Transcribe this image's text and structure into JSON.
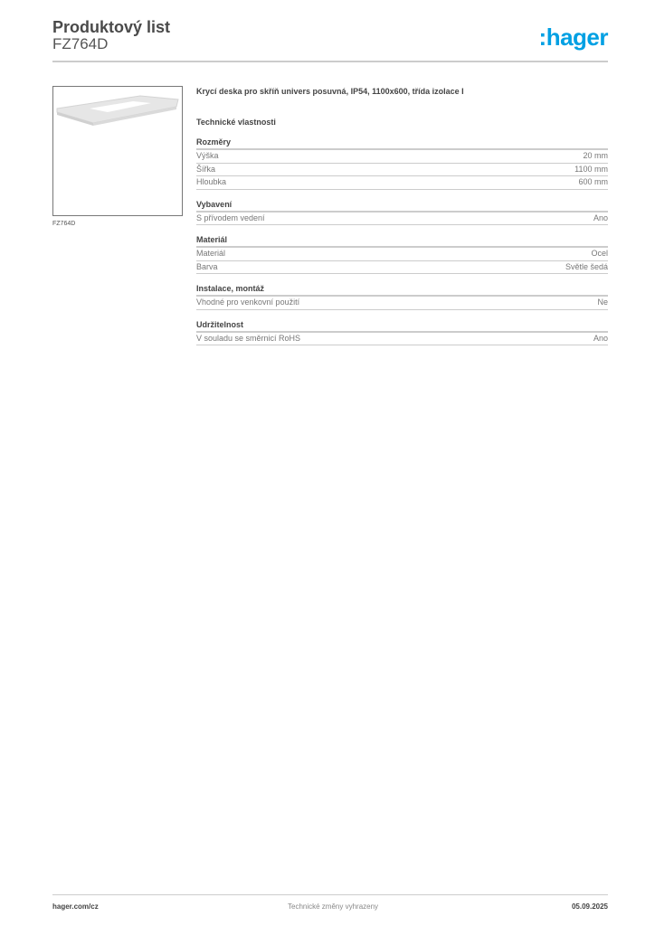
{
  "header": {
    "title": "Produktový list",
    "code": "FZ764D",
    "logo": ":hager",
    "logo_color": "#00a0e3"
  },
  "product": {
    "image_caption": "FZ764D",
    "description": "Krycí deska pro skříň univers posuvná, IP54, 1100x600, třída izolace I",
    "tech_heading": "Technické vlastnosti"
  },
  "sections": [
    {
      "title": "Rozměry",
      "rows": [
        {
          "label": "Výška",
          "value": "20 mm"
        },
        {
          "label": "Šířka",
          "value": "1100 mm"
        },
        {
          "label": "Hloubka",
          "value": "600 mm"
        }
      ]
    },
    {
      "title": "Vybavení",
      "rows": [
        {
          "label": "S přívodem vedení",
          "value": "Ano"
        }
      ]
    },
    {
      "title": "Materiál",
      "rows": [
        {
          "label": "Materiál",
          "value": "Ocel"
        },
        {
          "label": "Barva",
          "value": "Světle šedá"
        }
      ]
    },
    {
      "title": "Instalace, montáž",
      "rows": [
        {
          "label": "Vhodné pro venkovní použití",
          "value": "Ne"
        }
      ]
    },
    {
      "title": "Udržitelnost",
      "rows": [
        {
          "label": "V souladu se směrnicí RoHS",
          "value": "Ano"
        }
      ]
    }
  ],
  "footer": {
    "website": "hager.com/cz",
    "note": "Technické změny vyhrazeny",
    "date": "05.09.2025"
  }
}
